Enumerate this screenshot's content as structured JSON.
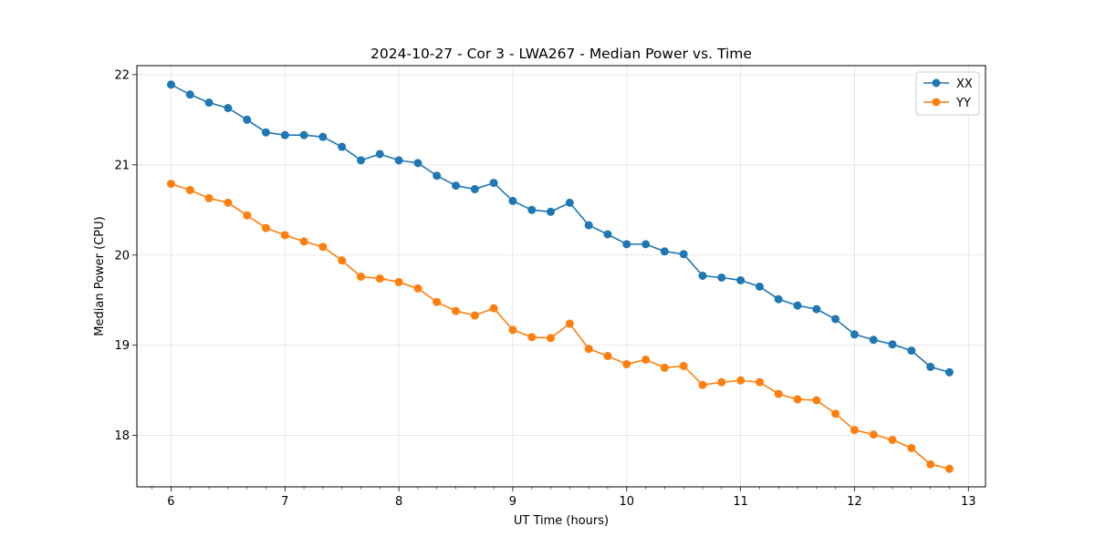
{
  "chart_data": {
    "type": "line",
    "title": "2024-10-27 - Cor 3 - LWA267 - Median Power vs. Time",
    "xlabel": "UT Time (hours)",
    "ylabel": "Median Power (CPU)",
    "xlim": [
      5.7,
      13.15
    ],
    "ylim": [
      17.43,
      22.1
    ],
    "xticks": [
      6,
      7,
      8,
      9,
      10,
      11,
      12,
      13
    ],
    "xtick_labels": [
      "6",
      "7",
      "8",
      "9",
      "10",
      "11",
      "12",
      "13"
    ],
    "yticks": [
      18,
      19,
      20,
      21,
      22
    ],
    "ytick_labels": [
      "18",
      "19",
      "20",
      "21",
      "22"
    ],
    "grid": true,
    "legend_position": "top-right",
    "x": [
      6.0,
      6.167,
      6.333,
      6.5,
      6.667,
      6.833,
      7.0,
      7.167,
      7.333,
      7.5,
      7.667,
      7.833,
      8.0,
      8.167,
      8.333,
      8.5,
      8.667,
      8.833,
      9.0,
      9.167,
      9.333,
      9.5,
      9.667,
      9.833,
      10.0,
      10.167,
      10.333,
      10.5,
      10.667,
      10.833,
      11.0,
      11.167,
      11.333,
      11.5,
      11.667,
      11.833,
      12.0,
      12.167,
      12.333,
      12.5,
      12.667,
      12.833
    ],
    "series": [
      {
        "name": "XX",
        "color": "#1f77b4",
        "values": [
          21.89,
          21.78,
          21.69,
          21.63,
          21.5,
          21.36,
          21.33,
          21.33,
          21.31,
          21.2,
          21.05,
          21.12,
          21.05,
          21.02,
          20.88,
          20.77,
          20.73,
          20.8,
          20.6,
          20.5,
          20.48,
          20.58,
          20.33,
          20.23,
          20.12,
          20.12,
          20.04,
          20.01,
          19.77,
          19.75,
          19.72,
          19.65,
          19.51,
          19.44,
          19.4,
          19.29,
          19.12,
          19.06,
          19.01,
          18.94,
          18.76,
          18.7
        ]
      },
      {
        "name": "YY",
        "color": "#ff7f0e",
        "values": [
          20.79,
          20.72,
          20.63,
          20.58,
          20.44,
          20.3,
          20.22,
          20.15,
          20.09,
          19.94,
          19.76,
          19.74,
          19.7,
          19.63,
          19.48,
          19.38,
          19.33,
          19.41,
          19.17,
          19.09,
          19.08,
          19.24,
          18.96,
          18.88,
          18.79,
          18.84,
          18.75,
          18.77,
          18.56,
          18.59,
          18.61,
          18.59,
          18.46,
          18.4,
          18.39,
          18.24,
          18.06,
          18.01,
          17.95,
          17.86,
          17.68,
          17.63
        ]
      }
    ]
  }
}
